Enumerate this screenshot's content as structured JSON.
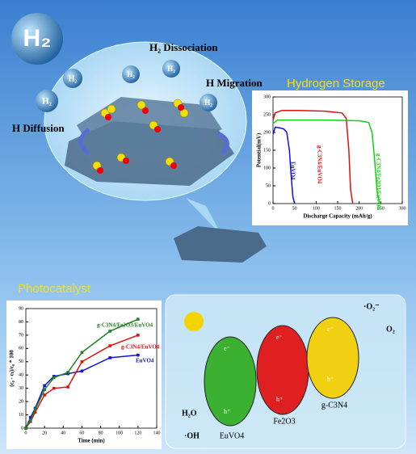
{
  "texts": {
    "big_h2": "H₂",
    "small_h2": "H₂",
    "dissociation": "H₂ Dissociation",
    "migration": "H Migration",
    "diffusion": "H Diffusion",
    "hydrogen_storage": "Hydrogen Storage",
    "photocatalyst": "Photocatalyst"
  },
  "photocatalysis": {
    "euvo4": "EuVO4",
    "fe2o3": "Fe2O3",
    "gcn": "g-C3N4",
    "h2o": "H₂O",
    "oh": "·OH",
    "o2_radical": "·O₂⁻",
    "o2": "O₂",
    "electron": "e⁻",
    "hole": "h⁺"
  },
  "chart_data": [
    {
      "type": "line",
      "xlabel": "Discharge Capacity (mAh/g)",
      "ylabel": "Potential(mV)",
      "xlim": [
        0,
        300
      ],
      "ylim": [
        0,
        300
      ],
      "xticks": [
        0,
        50,
        100,
        150,
        200,
        250,
        300
      ],
      "yticks": [
        0,
        50,
        100,
        150,
        200,
        250,
        300
      ],
      "markers": false,
      "series": [
        {
          "name": "EuVO4",
          "color": "#1010e0",
          "x": [
            0,
            5,
            15,
            25,
            32,
            38,
            42,
            46,
            50
          ],
          "values": [
            195,
            215,
            213,
            210,
            200,
            150,
            80,
            20,
            0
          ]
        },
        {
          "name": "g-C3N4/EuVO4",
          "color": "#e01010",
          "x": [
            0,
            5,
            20,
            60,
            120,
            160,
            170,
            176,
            180,
            185
          ],
          "values": [
            235,
            255,
            262,
            262,
            260,
            255,
            240,
            150,
            40,
            0
          ]
        },
        {
          "name": "g-C3N4/Fe2O3/EuVO4",
          "color": "#10d010",
          "x": [
            0,
            10,
            50,
            120,
            200,
            222,
            230,
            236,
            242,
            247
          ],
          "values": [
            225,
            235,
            235,
            235,
            233,
            228,
            200,
            120,
            30,
            0
          ]
        }
      ]
    },
    {
      "type": "line",
      "xlabel": "Time (min)",
      "ylabel": "(c₀ - cₜ)/c₀ * 100",
      "xlim": [
        0,
        140
      ],
      "ylim": [
        0,
        90
      ],
      "xticks": [
        0,
        20,
        40,
        60,
        80,
        100,
        120,
        140
      ],
      "yticks": [
        0,
        10,
        20,
        30,
        40,
        50,
        60,
        70,
        80,
        90
      ],
      "markers": true,
      "series": [
        {
          "name": "EuVO4",
          "color": "#1010e0",
          "x": [
            0,
            5,
            10,
            20,
            30,
            45,
            60,
            90,
            120
          ],
          "values": [
            0,
            8,
            15,
            32,
            39,
            41,
            43,
            53,
            55
          ]
        },
        {
          "name": "g-C3N4/EuVO4",
          "color": "#e01010",
          "x": [
            0,
            5,
            10,
            20,
            30,
            45,
            60,
            90,
            120
          ],
          "values": [
            0,
            5,
            12,
            25,
            30,
            31,
            50,
            62,
            70
          ]
        },
        {
          "name": "g-C3N4/Fe2O3/EuVO4",
          "color": "#208020",
          "x": [
            0,
            5,
            10,
            20,
            30,
            45,
            60,
            90,
            120
          ],
          "values": [
            0,
            6,
            14,
            29,
            38,
            42,
            57,
            73,
            82
          ]
        }
      ]
    }
  ]
}
